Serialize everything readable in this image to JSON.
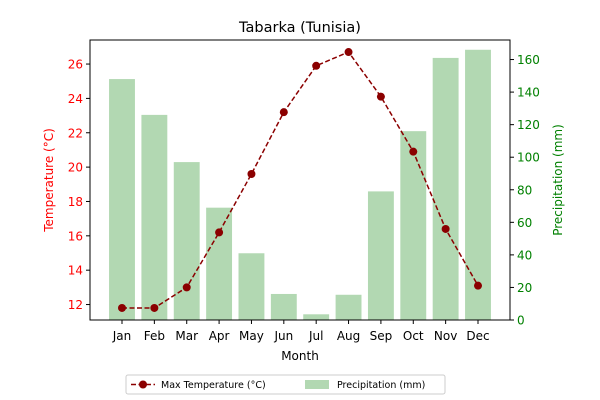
{
  "chart_data": {
    "type": "bar+line",
    "title": "Tabarka (Tunisia)",
    "xlabel": "Month",
    "ylabel_left": "Temperature (°C)",
    "ylabel_right": "Precipitation (mm)",
    "categories": [
      "Jan",
      "Feb",
      "Mar",
      "Apr",
      "May",
      "Jun",
      "Jul",
      "Aug",
      "Sep",
      "Oct",
      "Nov",
      "Dec"
    ],
    "y_left_lim": [
      11.1,
      27.4
    ],
    "y_left_ticks": [
      12,
      14,
      16,
      18,
      20,
      22,
      24,
      26
    ],
    "y_right_lim": [
      0,
      172
    ],
    "y_right_ticks": [
      0,
      20,
      40,
      60,
      80,
      100,
      120,
      140,
      160
    ],
    "series": [
      {
        "name": "Max Temperature (°C)",
        "axis": "left",
        "kind": "line",
        "values": [
          11.8,
          11.8,
          13.0,
          16.2,
          19.6,
          23.2,
          25.9,
          26.7,
          24.1,
          20.9,
          16.4,
          13.1
        ]
      },
      {
        "name": "Precipitation (mm)",
        "axis": "right",
        "kind": "bar",
        "values": [
          148,
          126,
          97,
          69,
          41,
          16,
          3.5,
          15.5,
          79,
          116,
          161,
          166
        ]
      }
    ],
    "legend_position": "bottom-center",
    "grid": false,
    "colors": {
      "temperature": "#8b0000",
      "temperature_axis": "#ff0000",
      "precipitation_bar": "#b2d8b2",
      "precipitation_axis": "#008000"
    }
  }
}
